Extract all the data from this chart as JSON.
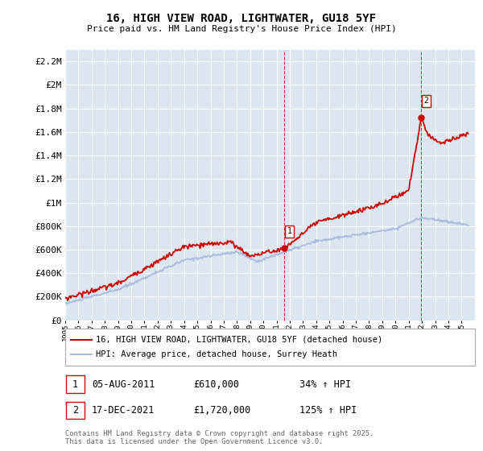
{
  "title": "16, HIGH VIEW ROAD, LIGHTWATER, GU18 5YF",
  "subtitle": "Price paid vs. HM Land Registry's House Price Index (HPI)",
  "ylim": [
    0,
    2300000
  ],
  "yticks": [
    0,
    200000,
    400000,
    600000,
    800000,
    1000000,
    1200000,
    1400000,
    1600000,
    1800000,
    2000000,
    2200000
  ],
  "ytick_labels": [
    "£0",
    "£200K",
    "£400K",
    "£600K",
    "£800K",
    "£1M",
    "£1.2M",
    "£1.4M",
    "£1.6M",
    "£1.8M",
    "£2M",
    "£2.2M"
  ],
  "bg_color": "#dce6f1",
  "fig_bg": "#ffffff",
  "grid_color": "#ffffff",
  "red_color": "#cc0000",
  "blue_color": "#aabbdd",
  "marker1_x": 2011.58,
  "marker1_y": 610000,
  "marker1_label": "1",
  "marker2_x": 2021.95,
  "marker2_y": 1720000,
  "marker2_label": "2",
  "vline1_x": 2011.58,
  "vline2_x": 2021.95,
  "legend_line1": "16, HIGH VIEW ROAD, LIGHTWATER, GU18 5YF (detached house)",
  "legend_line2": "HPI: Average price, detached house, Surrey Heath",
  "table_row1_num": "1",
  "table_row1_date": "05-AUG-2011",
  "table_row1_price": "£610,000",
  "table_row1_hpi": "34% ↑ HPI",
  "table_row2_num": "2",
  "table_row2_date": "17-DEC-2021",
  "table_row2_price": "£1,720,000",
  "table_row2_hpi": "125% ↑ HPI",
  "footer": "Contains HM Land Registry data © Crown copyright and database right 2025.\nThis data is licensed under the Open Government Licence v3.0.",
  "xmin": 1995,
  "xmax": 2026
}
